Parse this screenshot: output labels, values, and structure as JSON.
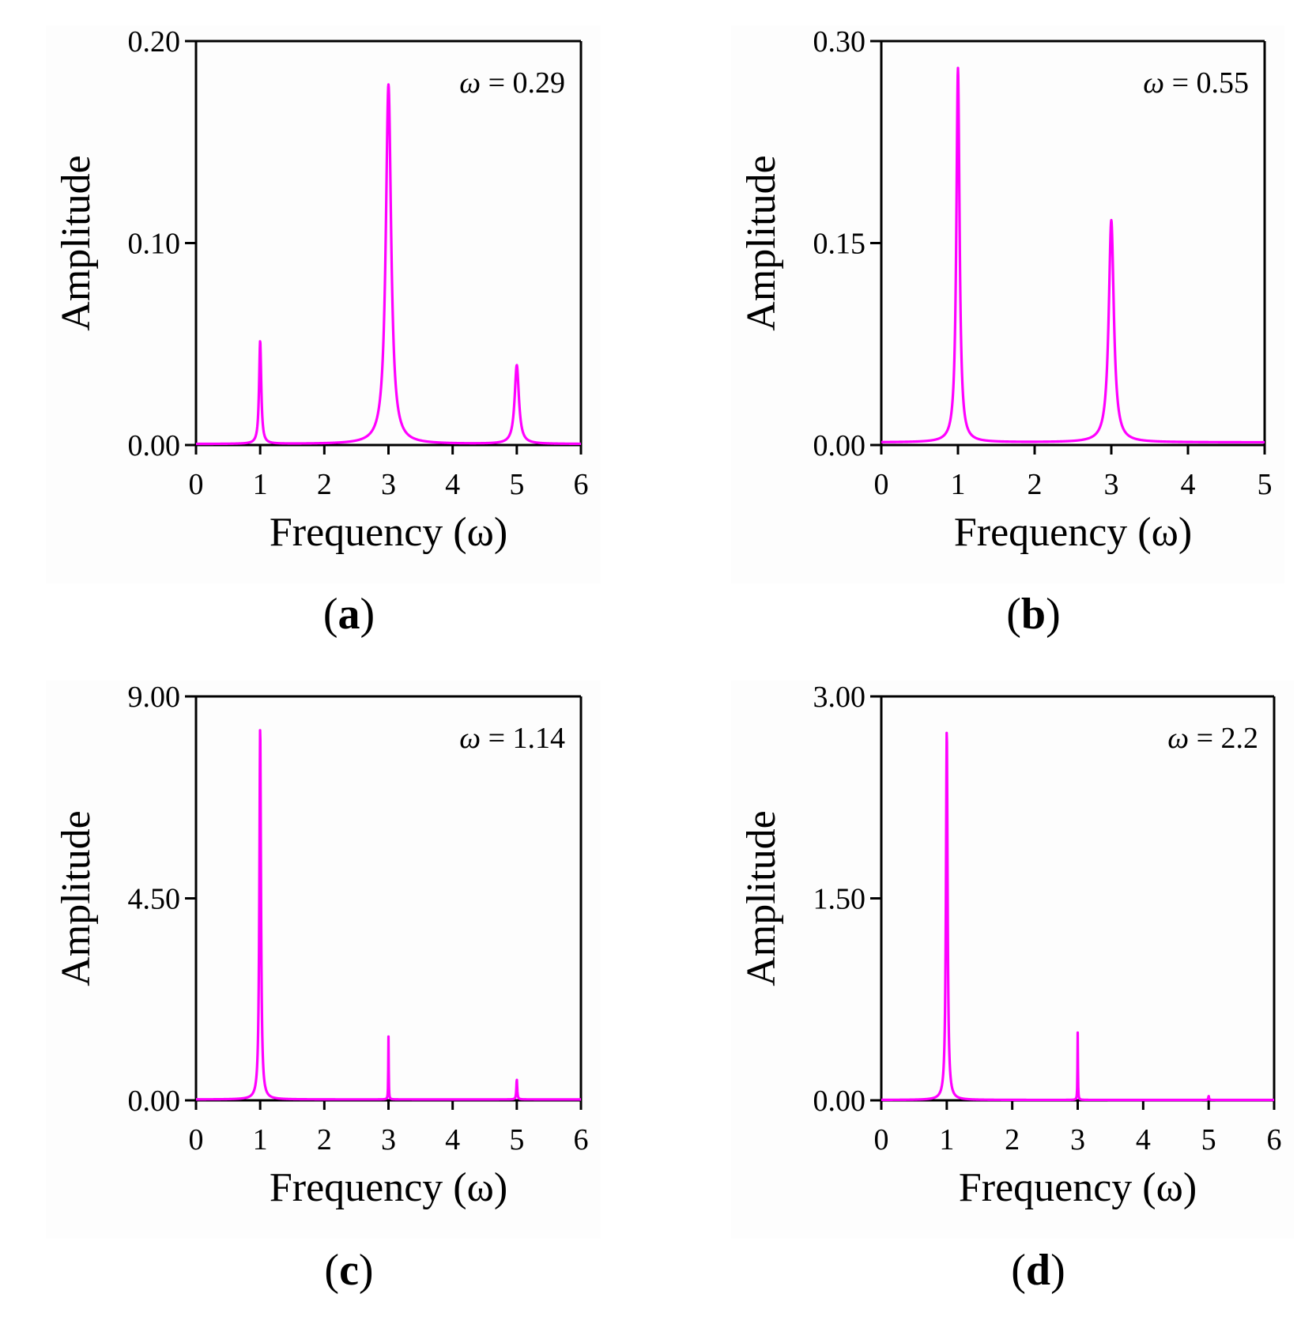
{
  "chart_data": [
    {
      "type": "line",
      "panel": "a",
      "panel_label_open": "(",
      "panel_label_letter": "a",
      "panel_label_close": ")",
      "annotation_symbol": "ω",
      "annotation_text": " = 0.29",
      "xlabel": "Frequency (ω)",
      "ylabel": "Amplitude",
      "xlim": [
        0,
        6
      ],
      "ylim": [
        0,
        0.2
      ],
      "xticks": [
        "0",
        "1",
        "2",
        "3",
        "4",
        "5",
        "6"
      ],
      "yticks": [
        "0.00",
        "0.10",
        "0.20"
      ],
      "color": "#ff00ff",
      "peaks": [
        {
          "x": 1,
          "amplitude": 0.051,
          "width": 0.02
        },
        {
          "x": 3,
          "amplitude": 0.178,
          "width": 0.05
        },
        {
          "x": 5,
          "amplitude": 0.039,
          "width": 0.04
        }
      ],
      "baseline": 0.0005,
      "x_end": 6
    },
    {
      "type": "line",
      "panel": "b",
      "panel_label_open": "(",
      "panel_label_letter": "b",
      "panel_label_close": ")",
      "annotation_symbol": "ω",
      "annotation_text": " = 0.55",
      "xlabel": "Frequency (ω)",
      "ylabel": "Amplitude",
      "xlim": [
        0,
        5
      ],
      "ylim": [
        0,
        0.3
      ],
      "xticks": [
        "0",
        "1",
        "2",
        "3",
        "4",
        "5"
      ],
      "yticks": [
        "0.00",
        "0.15",
        "0.30"
      ],
      "color": "#ff00ff",
      "peaks": [
        {
          "x": 1,
          "amplitude": 0.278,
          "width": 0.025
        },
        {
          "x": 3,
          "amplitude": 0.165,
          "width": 0.04
        }
      ],
      "baseline": 0.002,
      "x_end": 5
    },
    {
      "type": "line",
      "panel": "c",
      "panel_label_open": "(",
      "panel_label_letter": "c",
      "panel_label_close": ")",
      "annotation_symbol": "ω",
      "annotation_text": " = 1.14",
      "xlabel": "Frequency (ω)",
      "ylabel": "Amplitude",
      "xlim": [
        0,
        6
      ],
      "ylim": [
        0,
        9.0
      ],
      "xticks": [
        "0",
        "1",
        "2",
        "3",
        "4",
        "5",
        "6"
      ],
      "yticks": [
        "0.00",
        "4.50",
        "9.00"
      ],
      "color": "#ff00ff",
      "peaks": [
        {
          "x": 1,
          "amplitude": 8.3,
          "width": 0.015
        },
        {
          "x": 3,
          "amplitude": 1.4,
          "width": 0.004
        },
        {
          "x": 5,
          "amplitude": 0.45,
          "width": 0.008
        }
      ],
      "baseline": 0.02,
      "x_end": 6
    },
    {
      "type": "line",
      "panel": "d",
      "panel_label_open": "(",
      "panel_label_letter": "d",
      "panel_label_close": ")",
      "annotation_symbol": "ω",
      "annotation_text": " = 2.2",
      "xlabel": "Frequency (ω)",
      "ylabel": "Amplitude",
      "xlim": [
        0,
        6
      ],
      "ylim": [
        0,
        3.0
      ],
      "xticks": [
        "0",
        "1",
        "2",
        "3",
        "4",
        "5",
        "6"
      ],
      "yticks": [
        "0.00",
        "1.50",
        "3.00"
      ],
      "color": "#ff00ff",
      "peaks": [
        {
          "x": 1,
          "amplitude": 2.75,
          "width": 0.015
        },
        {
          "x": 3,
          "amplitude": 0.5,
          "width": 0.004
        },
        {
          "x": 5,
          "amplitude": 0.03,
          "width": 0.006
        }
      ],
      "baseline": 0.003,
      "x_end": 6
    }
  ]
}
